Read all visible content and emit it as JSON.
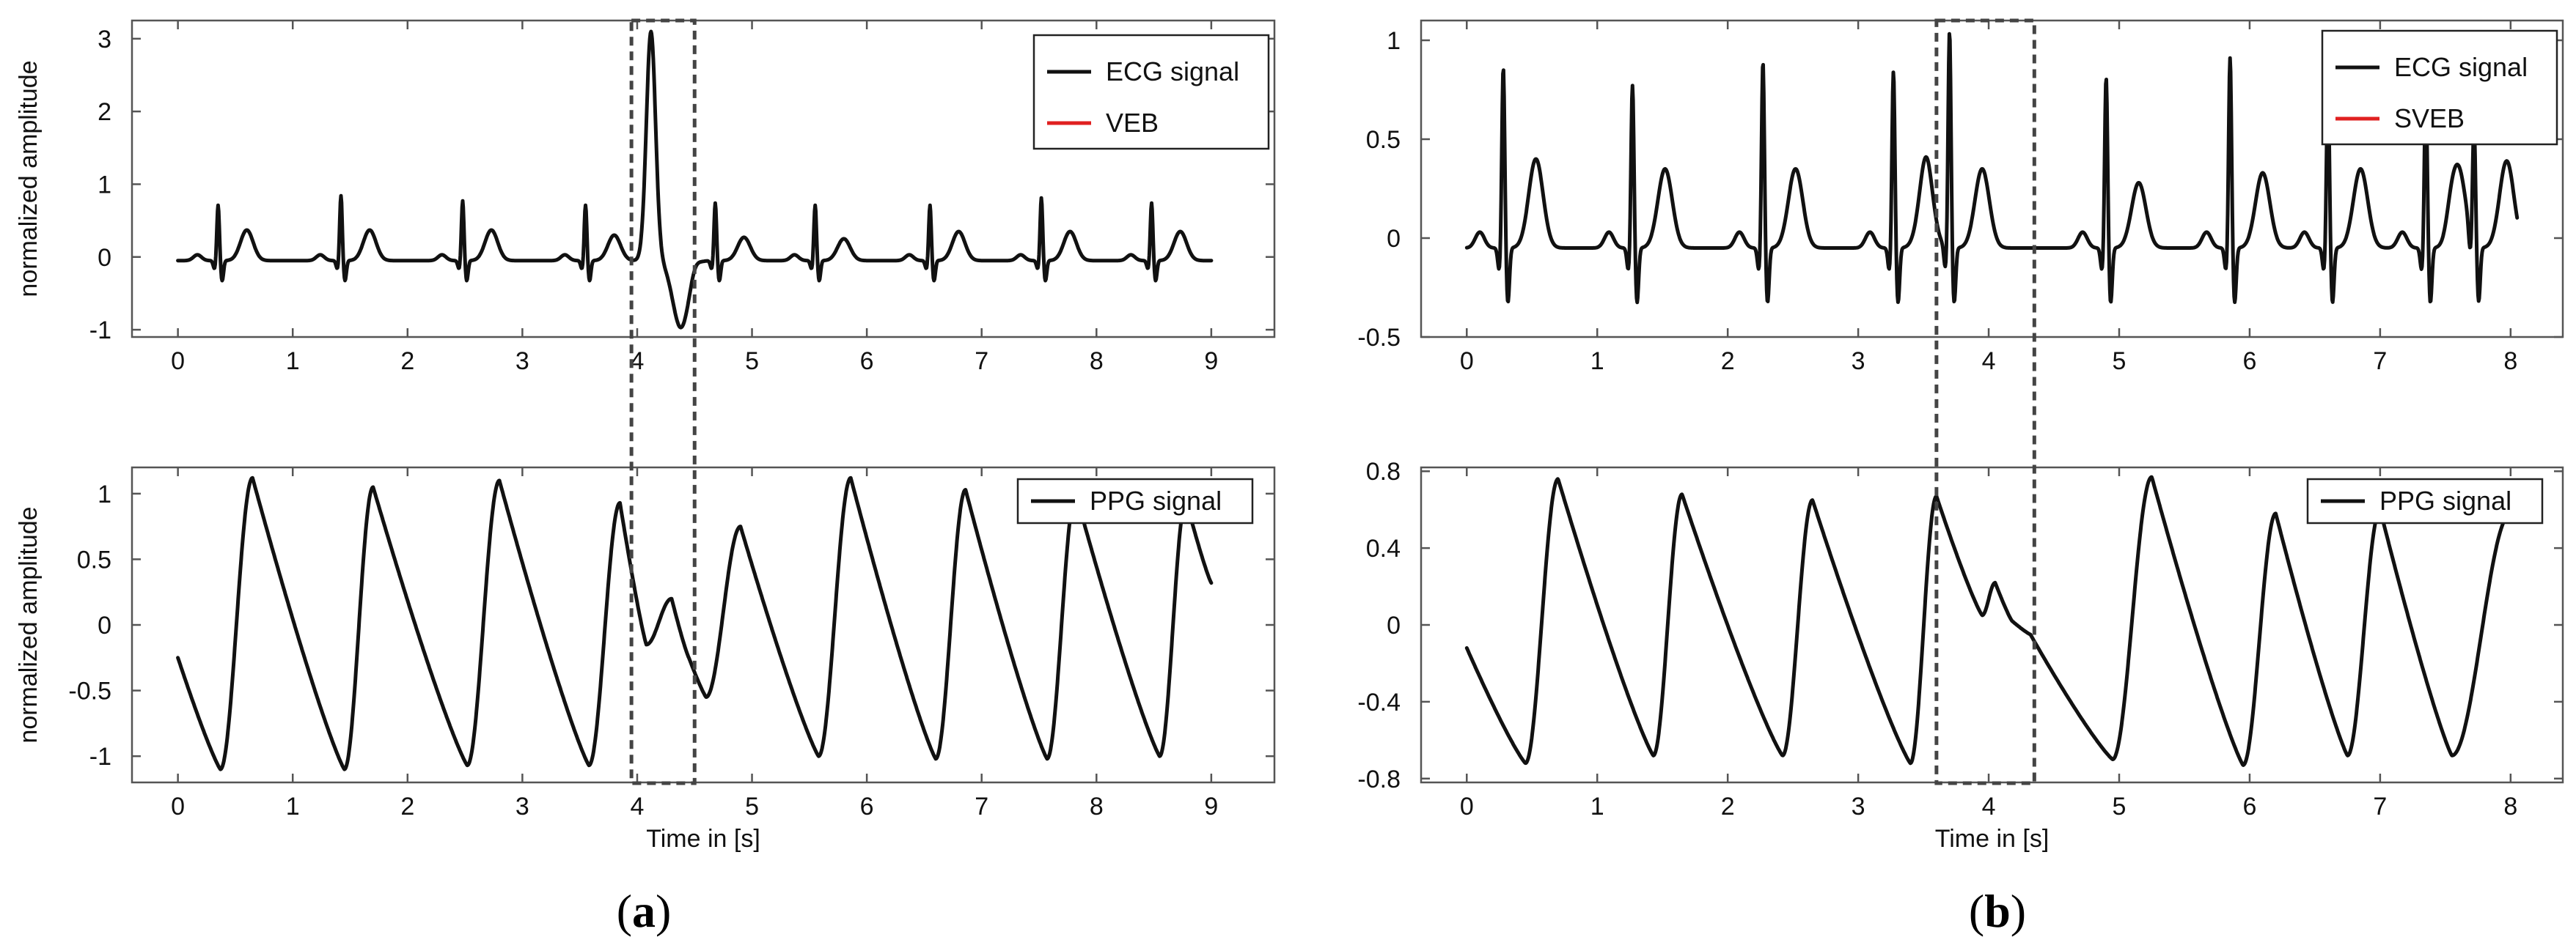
{
  "figure": {
    "captions": [
      {
        "open": "(",
        "letter": "a",
        "close": ")"
      },
      {
        "open": "(",
        "letter": "b",
        "close": ")"
      }
    ]
  },
  "chart_data": [
    {
      "type": "line",
      "panel": "a-top",
      "ylabel": "normalized amplitude",
      "xlabel": "",
      "xlim": [
        -0.4,
        9.55
      ],
      "ylim": [
        -1.1,
        3.25
      ],
      "xticks": [
        0,
        1,
        2,
        3,
        4,
        5,
        6,
        7,
        8,
        9
      ],
      "yticks": [
        -1,
        0,
        1,
        2,
        3
      ],
      "ytick_labels": [
        "-1",
        "0",
        "1",
        "2",
        "3"
      ],
      "legend": {
        "placement": "top-right",
        "entries": [
          {
            "label": "ECG signal",
            "color": "#111111"
          },
          {
            "label": "VEB",
            "color": "#e02020"
          }
        ]
      },
      "highlight_x": [
        3.95,
        4.5
      ],
      "series": [
        {
          "name": "ECG signal",
          "kind": "ecg",
          "beats": [
            {
              "t": 0.35,
              "r": 0.72,
              "t_wave": 0.42
            },
            {
              "t": 1.42,
              "r": 0.85,
              "t_wave": 0.42
            },
            {
              "t": 2.48,
              "r": 0.78,
              "t_wave": 0.42
            },
            {
              "t": 3.55,
              "r": 0.72,
              "t_wave": 0.35
            },
            {
              "t": 5.55,
              "r": 0.72,
              "t_wave": 0.3
            },
            {
              "t": 6.55,
              "r": 0.72,
              "t_wave": 0.4
            },
            {
              "t": 7.52,
              "r": 0.82,
              "t_wave": 0.4
            },
            {
              "t": 8.48,
              "r": 0.75,
              "t_wave": 0.4
            }
          ],
          "veb": {
            "start": 3.9,
            "peak_t": 4.12,
            "peak": 3.1,
            "trough_t": 4.38,
            "trough": -0.92
          },
          "extra_beat": {
            "t": 4.68,
            "r": 0.75,
            "t_wave": 0.32
          },
          "x_end": 9.0,
          "baseline": -0.05
        }
      ]
    },
    {
      "type": "line",
      "panel": "a-bottom",
      "ylabel": "normalized amplitude",
      "xlabel": "Time in [s]",
      "xlim": [
        -0.4,
        9.55
      ],
      "ylim": [
        -1.2,
        1.2
      ],
      "xticks": [
        0,
        1,
        2,
        3,
        4,
        5,
        6,
        7,
        8,
        9
      ],
      "yticks": [
        -1,
        -0.5,
        0,
        0.5,
        1
      ],
      "ytick_labels": [
        "-1",
        "-0.5",
        "0",
        "0.5",
        "1"
      ],
      "legend": {
        "placement": "top-right",
        "entries": [
          {
            "label": "PPG signal",
            "color": "#111111"
          }
        ]
      },
      "highlight_x": [
        3.95,
        4.5
      ],
      "series": [
        {
          "name": "PPG signal",
          "kind": "ppg",
          "start": {
            "t": 0.0,
            "v": -0.25
          },
          "feet": [
            {
              "t": 0.37,
              "v": -1.1
            },
            {
              "t": 1.45,
              "v": -1.1
            },
            {
              "t": 2.52,
              "v": -1.07
            },
            {
              "t": 3.58,
              "v": -1.07
            },
            {
              "t": 4.6,
              "v": -0.55
            },
            {
              "t": 5.58,
              "v": -1.0
            },
            {
              "t": 6.6,
              "v": -1.02
            },
            {
              "t": 7.57,
              "v": -1.02
            },
            {
              "t": 8.55,
              "v": -1.0
            }
          ],
          "peaks": [
            {
              "t": 0.65,
              "v": 1.12
            },
            {
              "t": 1.7,
              "v": 1.05
            },
            {
              "t": 2.8,
              "v": 1.1
            },
            {
              "t": 3.85,
              "v": 0.93
            },
            {
              "t": 4.9,
              "v": 0.75
            },
            {
              "t": 5.86,
              "v": 1.12
            },
            {
              "t": 6.86,
              "v": 1.03
            },
            {
              "t": 7.82,
              "v": 1.0
            },
            {
              "t": 8.78,
              "v": 0.95
            }
          ],
          "irregular": [
            {
              "t": 4.08,
              "v": -0.15
            },
            {
              "t": 4.3,
              "v": 0.2
            },
            {
              "t": 4.45,
              "v": -0.25
            }
          ],
          "end": {
            "t": 9.0,
            "v": 0.32
          }
        }
      ]
    },
    {
      "type": "line",
      "panel": "b-top",
      "ylabel": "",
      "xlabel": "",
      "xlim": [
        -0.35,
        8.4
      ],
      "ylim": [
        -0.5,
        1.1
      ],
      "xticks": [
        0,
        1,
        2,
        3,
        4,
        5,
        6,
        7,
        8
      ],
      "yticks": [
        -0.5,
        0,
        0.5,
        1
      ],
      "ytick_labels": [
        "-0.5",
        "0",
        "0.5",
        "1"
      ],
      "legend": {
        "placement": "top-right",
        "entries": [
          {
            "label": "ECG signal",
            "color": "#111111"
          },
          {
            "label": "SVEB",
            "color": "#e02020"
          }
        ]
      },
      "highlight_x": [
        3.6,
        4.35
      ],
      "series": [
        {
          "name": "ECG signal",
          "kind": "ecg",
          "beats": [
            {
              "t": 0.28,
              "r": 0.87,
              "t_wave": 0.45
            },
            {
              "t": 1.27,
              "r": 0.78,
              "t_wave": 0.4
            },
            {
              "t": 2.27,
              "r": 0.9,
              "t_wave": 0.4
            },
            {
              "t": 3.27,
              "r": 0.85,
              "t_wave": 0.38
            },
            {
              "t": 3.7,
              "r": 1.05,
              "t_wave": 0.4
            },
            {
              "t": 4.9,
              "r": 0.82,
              "t_wave": 0.33
            },
            {
              "t": 5.85,
              "r": 0.92,
              "t_wave": 0.38
            },
            {
              "t": 6.6,
              "r": 0.78,
              "t_wave": 0.4
            },
            {
              "t": 7.35,
              "r": 0.75,
              "t_wave": 0.4
            },
            {
              "t": 7.72,
              "r": 0.55,
              "t_wave": 0.44
            }
          ],
          "x_end": 8.05,
          "baseline": -0.05
        }
      ]
    },
    {
      "type": "line",
      "panel": "b-bottom",
      "ylabel": "",
      "xlabel": "Time in [s]",
      "xlim": [
        -0.35,
        8.4
      ],
      "ylim": [
        -0.82,
        0.82
      ],
      "xticks": [
        0,
        1,
        2,
        3,
        4,
        5,
        6,
        7,
        8
      ],
      "yticks": [
        -0.8,
        -0.4,
        0,
        0.4,
        0.8
      ],
      "ytick_labels": [
        "-0.8",
        "-0.4",
        "0",
        "0.4",
        "0.8"
      ],
      "legend": {
        "placement": "top-right",
        "entries": [
          {
            "label": "PPG signal",
            "color": "#111111"
          }
        ]
      },
      "highlight_x": [
        3.6,
        4.35
      ],
      "series": [
        {
          "name": "PPG signal",
          "kind": "ppg",
          "start": {
            "t": 0.0,
            "v": -0.12
          },
          "feet": [
            {
              "t": 0.45,
              "v": -0.72
            },
            {
              "t": 1.43,
              "v": -0.68
            },
            {
              "t": 2.42,
              "v": -0.68
            },
            {
              "t": 3.4,
              "v": -0.72
            },
            {
              "t": 4.95,
              "v": -0.7
            },
            {
              "t": 5.95,
              "v": -0.73
            },
            {
              "t": 6.75,
              "v": -0.68
            },
            {
              "t": 7.55,
              "v": -0.68
            }
          ],
          "peaks": [
            {
              "t": 0.7,
              "v": 0.76
            },
            {
              "t": 1.65,
              "v": 0.68
            },
            {
              "t": 2.65,
              "v": 0.65
            },
            {
              "t": 3.6,
              "v": 0.67
            },
            {
              "t": 5.25,
              "v": 0.77
            },
            {
              "t": 6.2,
              "v": 0.58
            },
            {
              "t": 7.0,
              "v": 0.6
            },
            {
              "t": 8.0,
              "v": 0.58
            }
          ],
          "irregular": [
            {
              "t": 3.95,
              "v": 0.05
            },
            {
              "t": 4.05,
              "v": 0.22
            },
            {
              "t": 4.18,
              "v": 0.02
            },
            {
              "t": 4.32,
              "v": -0.05
            }
          ],
          "end": {
            "t": 8.0,
            "v": 0.58
          }
        }
      ]
    }
  ]
}
